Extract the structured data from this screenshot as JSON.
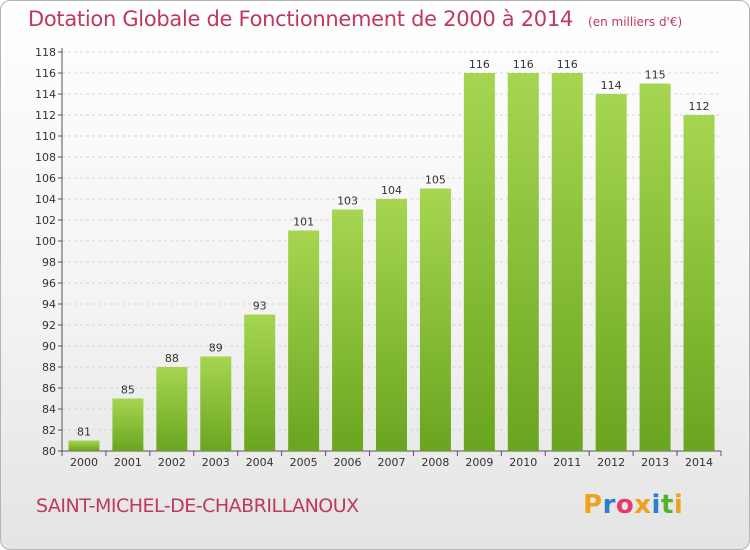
{
  "header": {
    "title": "Dotation Globale de Fonctionnement de 2000 à 2014",
    "unit": "(en milliers d'€)"
  },
  "footer": {
    "commune": "SAINT-MICHEL-DE-CHABRILLANOUX",
    "logo": "Proxiti"
  },
  "colors": {
    "title": "#c0385a",
    "bar_light": "#a6d651",
    "bar_dark": "#6aa51f",
    "logo_letters": [
      "#f0a020",
      "#2b7fd0",
      "#e83a6a",
      "#f0a020",
      "#2b7fd0",
      "#58b030",
      "#f0a020"
    ]
  },
  "chart_data": {
    "type": "bar",
    "title": "Dotation Globale de Fonctionnement de 2000 à 2014",
    "subtitle": "(en milliers d'€)",
    "categories": [
      "2000",
      "2001",
      "2002",
      "2003",
      "2004",
      "2005",
      "2006",
      "2007",
      "2008",
      "2009",
      "2010",
      "2011",
      "2012",
      "2013",
      "2014"
    ],
    "values": [
      81,
      85,
      88,
      89,
      93,
      101,
      103,
      104,
      105,
      116,
      116,
      116,
      114,
      115,
      112
    ],
    "ylim": [
      80,
      118
    ],
    "ytick_step": 2,
    "grid": true,
    "legend": "none"
  }
}
